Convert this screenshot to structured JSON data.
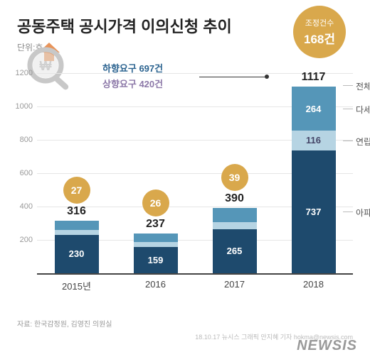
{
  "title": "공동주택 공시가격 이의신청 추이",
  "unit": "단위:호",
  "adjustment_badge": {
    "caption": "조정건수",
    "value": "168건"
  },
  "requests": {
    "down": "하향요구 697건",
    "up": "상향요구 420건"
  },
  "y_axis": {
    "ticks": [
      200,
      400,
      600,
      800,
      1000,
      1200
    ]
  },
  "y_max": 1300,
  "colors": {
    "apt": "#1e4a6d",
    "row": "#b6d4e3",
    "multi": "#5596b8",
    "badge": "#d9a84c",
    "req_down": "#2a628f",
    "req_up": "#8c78a8"
  },
  "segment_legend": {
    "total": "전체",
    "multi": "다세대",
    "row": "연립주택",
    "apt": "아파트"
  },
  "bars": [
    {
      "year": "2015년",
      "total": 316,
      "apt": 230,
      "row": 30,
      "multi": 56,
      "badge": "27"
    },
    {
      "year": "2016",
      "total": 237,
      "apt": 159,
      "row": 28,
      "multi": 50,
      "badge": "26"
    },
    {
      "year": "2017",
      "total": 390,
      "apt": 265,
      "row": 40,
      "multi": 85,
      "badge": "39"
    },
    {
      "year": "2018",
      "total": 1117,
      "apt": 737,
      "row": 116,
      "multi": 264,
      "badge": null,
      "show_values": true
    }
  ],
  "source": "자료: 한국감정원, 김영진 의원실",
  "credit": "18.10.17 뉴시스 그래픽 안지혜 기자 hokma@newsis.com",
  "watermark": "NEWSIS"
}
